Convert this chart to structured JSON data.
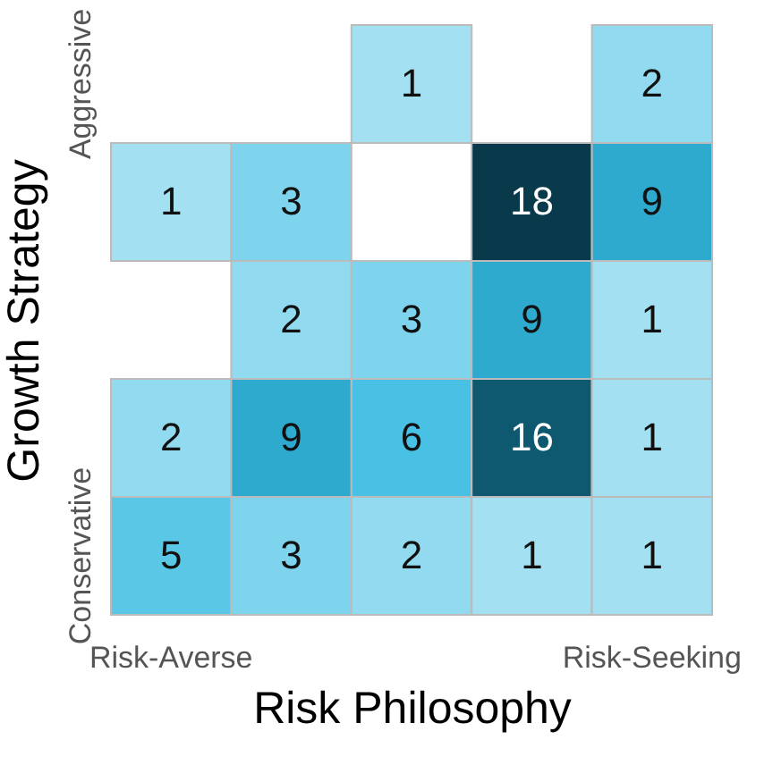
{
  "chart_data": {
    "type": "heatmap",
    "xlabel": "Risk Philosophy",
    "ylabel": "Growth Strategy",
    "categories": [
      "Risk-Averse",
      null,
      null,
      null,
      "Risk-Seeking"
    ],
    "y_categories": [
      "Aggressive",
      null,
      null,
      null,
      "Conservative"
    ],
    "cells": [
      [
        null,
        null,
        1,
        null,
        2
      ],
      [
        1,
        3,
        null,
        18,
        9
      ],
      [
        null,
        2,
        3,
        9,
        1
      ],
      [
        2,
        9,
        6,
        16,
        1
      ],
      [
        5,
        3,
        2,
        1,
        1
      ]
    ],
    "data_labels": true
  }
}
